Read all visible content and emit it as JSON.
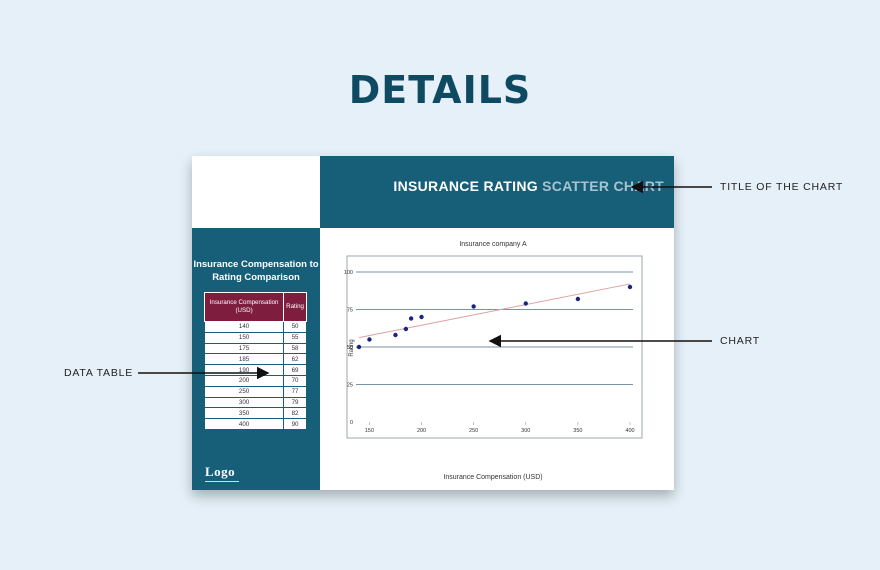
{
  "page": {
    "heading": "DETAILS"
  },
  "sheet": {
    "title_main": "INSURANCE RATING",
    "title_light": "SCATTER CHART",
    "sidebar_title": "Insurance Compensation to Rating Comparison",
    "logo": "Logo",
    "colors": {
      "accent": "#175e78",
      "table_header": "#7e1d3d",
      "trend": "#e0a0a0",
      "points": "#1a237e"
    }
  },
  "table": {
    "headers": [
      "Insurance Compensation (USD)",
      "Rating"
    ],
    "rows": [
      [
        "140",
        "50"
      ],
      [
        "150",
        "55"
      ],
      [
        "175",
        "58"
      ],
      [
        "185",
        "62"
      ],
      [
        "190",
        "69"
      ],
      [
        "200",
        "70"
      ],
      [
        "250",
        "77"
      ],
      [
        "300",
        "79"
      ],
      [
        "350",
        "82"
      ],
      [
        "400",
        "90"
      ]
    ]
  },
  "callouts": {
    "title": "TITLE OF THE CHART",
    "chart": "CHART",
    "table": "DATA TABLE"
  },
  "chart_data": {
    "type": "scatter",
    "title": "Insurance company A",
    "xlabel": "Insurance Compensation (USD)",
    "ylabel": "Rating",
    "xlim": [
      140,
      400
    ],
    "ylim": [
      0,
      100
    ],
    "xticks": [
      150,
      200,
      250,
      300,
      350,
      400
    ],
    "yticks": [
      0,
      25,
      50,
      75,
      100
    ],
    "grid": "horizontal",
    "trendline": true,
    "points": [
      {
        "x": 140,
        "y": 50
      },
      {
        "x": 150,
        "y": 55
      },
      {
        "x": 175,
        "y": 58
      },
      {
        "x": 185,
        "y": 62
      },
      {
        "x": 190,
        "y": 69
      },
      {
        "x": 200,
        "y": 70
      },
      {
        "x": 250,
        "y": 77
      },
      {
        "x": 300,
        "y": 79
      },
      {
        "x": 350,
        "y": 82
      },
      {
        "x": 400,
        "y": 90
      }
    ]
  }
}
